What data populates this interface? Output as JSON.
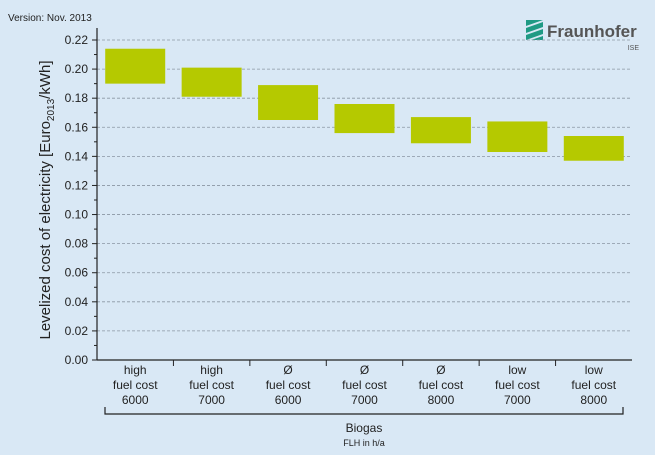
{
  "version_label": "Version: Nov. 2013",
  "logo": {
    "name": "Fraunhofer",
    "sub": "ISE"
  },
  "chart_data": {
    "type": "bar",
    "subtype": "floating-range",
    "title": "",
    "ylabel_prefix": "Levelized cost of electricity [Euro",
    "ylabel_sub": "2013",
    "ylabel_suffix": "/kWh]",
    "ylim": [
      0,
      0.23
    ],
    "yticks": [
      "0.00",
      "0.02",
      "0.04",
      "0.06",
      "0.08",
      "0.10",
      "0.12",
      "0.14",
      "0.16",
      "0.18",
      "0.20",
      "0.22"
    ],
    "grid": true,
    "bar_color": "#b5c900",
    "categories": [
      {
        "line1": "high",
        "line2": "fuel cost",
        "line3": "6000",
        "low": 0.19,
        "high": 0.214
      },
      {
        "line1": "high",
        "line2": "fuel cost",
        "line3": "7000",
        "low": 0.181,
        "high": 0.201
      },
      {
        "line1": "Ø",
        "line2": "fuel cost",
        "line3": "6000",
        "low": 0.165,
        "high": 0.189
      },
      {
        "line1": "Ø",
        "line2": "fuel cost",
        "line3": "7000",
        "low": 0.156,
        "high": 0.176
      },
      {
        "line1": "Ø",
        "line2": "fuel cost",
        "line3": "8000",
        "low": 0.149,
        "high": 0.167
      },
      {
        "line1": "low",
        "line2": "fuel cost",
        "line3": "7000",
        "low": 0.143,
        "high": 0.164
      },
      {
        "line1": "low",
        "line2": "fuel cost",
        "line3": "8000",
        "low": 0.137,
        "high": 0.154
      }
    ],
    "group_label": "Biogas",
    "group_sublabel": "FLH in h/a"
  }
}
